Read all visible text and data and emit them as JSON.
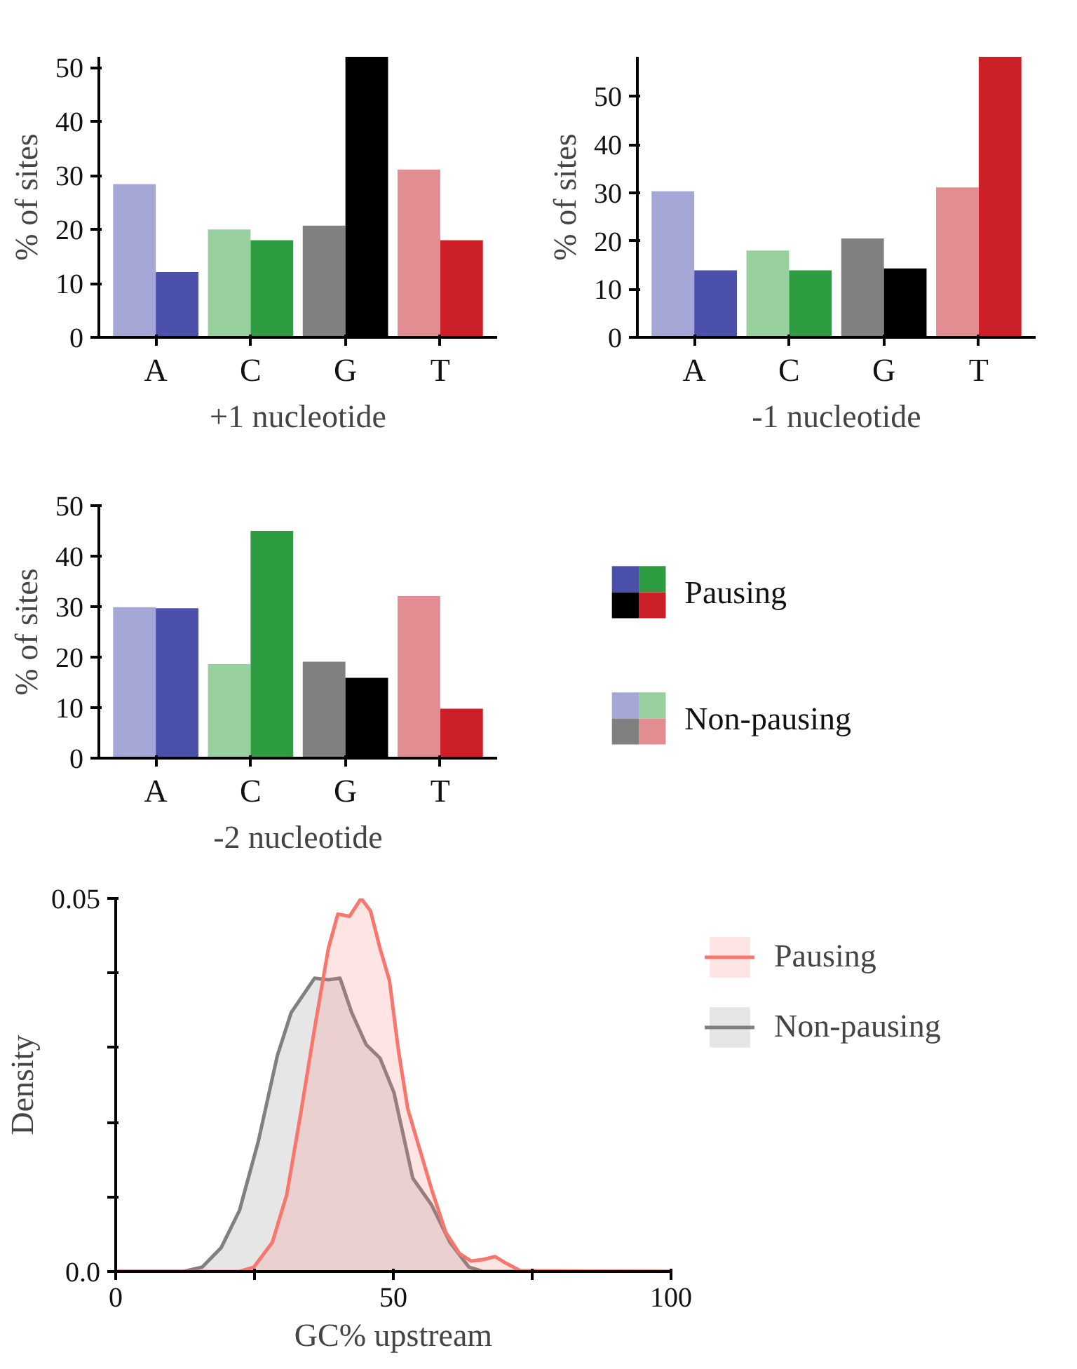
{
  "chart_data": [
    {
      "type": "bar",
      "xlabel": "+1 nucleotide",
      "ylabel": "% of sites",
      "categories": [
        "A",
        "C",
        "G",
        "T"
      ],
      "ylim": [
        0,
        52
      ],
      "yticks": [
        0,
        10,
        20,
        30,
        40,
        50
      ],
      "series": [
        {
          "colors": [
            "#a5a8d6",
            "#98d0a0",
            "#808080",
            "#e28d91"
          ],
          "values": [
            28.4,
            20.0,
            20.7,
            31.1
          ]
        },
        {
          "colors": [
            "#4b51ab",
            "#2e9c41",
            "#000000",
            "#cc1f27"
          ],
          "values": [
            12.1,
            18.0,
            52.0,
            18.0
          ]
        }
      ]
    },
    {
      "type": "bar",
      "xlabel": "-1 nucleotide",
      "ylabel": "% of sites",
      "categories": [
        "A",
        "C",
        "G",
        "T"
      ],
      "ylim": [
        0,
        58.2
      ],
      "yticks": [
        0,
        10,
        20,
        30,
        40,
        50
      ],
      "series": [
        {
          "colors": [
            "#a5a8d6",
            "#98d0a0",
            "#808080",
            "#e28d91"
          ],
          "values": [
            30.3,
            18.0,
            20.5,
            31.1
          ]
        },
        {
          "colors": [
            "#4b51ab",
            "#2e9c41",
            "#000000",
            "#cc1f27"
          ],
          "values": [
            13.9,
            13.9,
            14.3,
            58.2
          ]
        }
      ]
    },
    {
      "type": "bar",
      "xlabel": "-2 nucleotide",
      "ylabel": "% of sites",
      "categories": [
        "A",
        "C",
        "G",
        "T"
      ],
      "ylim": [
        0,
        50
      ],
      "yticks": [
        0,
        10,
        20,
        30,
        40,
        50
      ],
      "legend": "right",
      "series": [
        {
          "name": "Non-pausing",
          "colors": [
            "#a5a8d6",
            "#98d0a0",
            "#808080",
            "#e28d91"
          ],
          "values": [
            29.9,
            18.6,
            19.1,
            32.1
          ]
        },
        {
          "name": "Pausing",
          "colors": [
            "#4b51ab",
            "#2e9c41",
            "#000000",
            "#cc1f27"
          ],
          "values": [
            29.7,
            45.0,
            15.9,
            9.8
          ]
        }
      ]
    },
    {
      "type": "area",
      "xlabel": "GC% upstream",
      "ylabel": "Density",
      "xlim": [
        0,
        100
      ],
      "ylim": [
        0,
        0.05
      ],
      "xticks": [
        0,
        {
          "value": 25,
          "label": null
        },
        50,
        {
          "value": 75,
          "label": null
        },
        100
      ],
      "yticks": [
        {
          "value": 0,
          "label": "0.0"
        },
        {
          "value": 0.01,
          "label": null
        },
        {
          "value": 0.02,
          "label": null
        },
        {
          "value": 0.03,
          "label": null
        },
        {
          "value": 0.04,
          "label": null
        },
        0.05
      ],
      "legend": "top right",
      "series": [
        {
          "name": "Pausing",
          "color": "#f8766d",
          "x": [
            0,
            22.3,
            24.9,
            28.2,
            30.8,
            33.3,
            35.8,
            38.3,
            40.0,
            42.1,
            44.2,
            45.9,
            47.6,
            49.3,
            50.9,
            52.6,
            54.3,
            56.9,
            59.4,
            61.9,
            64.0,
            66.1,
            68.3,
            70.3,
            72.9,
            100
          ],
          "values": [
            0,
            0,
            0.0006,
            0.0039,
            0.0103,
            0.0211,
            0.0325,
            0.0433,
            0.0479,
            0.0476,
            0.05,
            0.0483,
            0.0433,
            0.039,
            0.0297,
            0.0218,
            0.0175,
            0.011,
            0.0053,
            0.0024,
            0.0014,
            0.0016,
            0.002,
            0.0011,
            0.0001,
            0
          ]
        },
        {
          "name": "Non-pausing",
          "color": "#808080",
          "x": [
            0,
            12.2,
            15.6,
            19.0,
            22.3,
            25.7,
            29.1,
            31.6,
            35.8,
            38.3,
            40.4,
            42.5,
            45.1,
            47.6,
            50.1,
            53.5,
            56.9,
            60.2,
            63.6,
            66.1,
            100
          ],
          "values": [
            0,
            0,
            0.0006,
            0.0032,
            0.0082,
            0.0175,
            0.0289,
            0.0347,
            0.0393,
            0.0391,
            0.0393,
            0.0347,
            0.0304,
            0.0286,
            0.024,
            0.0125,
            0.0089,
            0.0039,
            0.0006,
            0,
            0
          ]
        }
      ]
    }
  ]
}
